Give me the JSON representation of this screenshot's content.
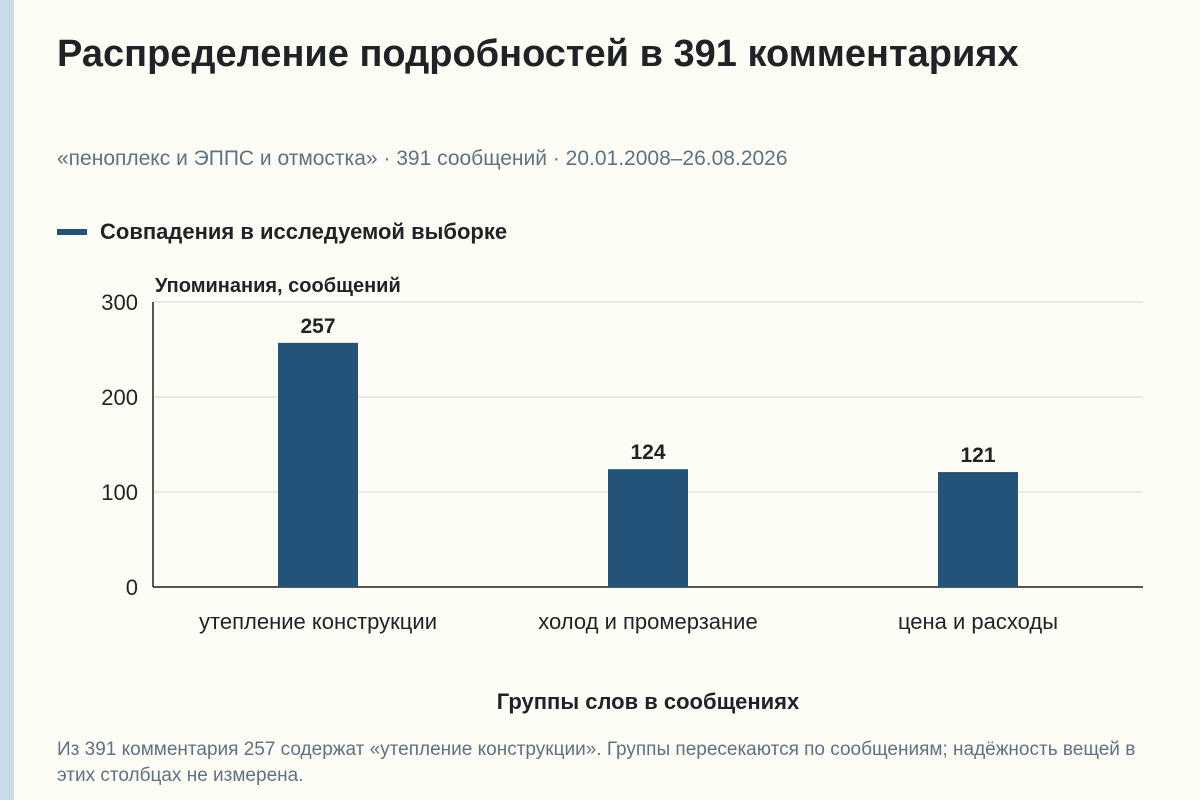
{
  "colors": {
    "bar": "#235379",
    "grid": "#d8d8d2",
    "axis": "#222222",
    "text": "#1f2326",
    "muted": "#5e7282",
    "background": "#fdfcf5",
    "stripe": "#c7dbe9"
  },
  "chart_data": {
    "type": "bar",
    "title": "Распределение подробностей в 391 комментариях",
    "subtitle": "«пеноплекс и ЭППС и отмостка» · 391 сообщений · 20.01.2008–26.08.2026",
    "xlabel": "Группы слов в сообщениях",
    "ylabel": "Упоминания, сообщений",
    "ylim": [
      0,
      300
    ],
    "yticks": [
      0,
      100,
      200,
      300
    ],
    "grid": true,
    "legend_position": "top-left",
    "categories": [
      "утепление конструкции",
      "холод и промерзание",
      "цена и расходы"
    ],
    "series": [
      {
        "name": "Совпадения в исследуемой выборке",
        "values": [
          257,
          124,
          121
        ]
      }
    ]
  },
  "footnote": "Из 391 комментария 257 содержат «утепление конструкции». Группы пересекаются по сообщениям; надёжность вещей в этих столбцах не измерена."
}
